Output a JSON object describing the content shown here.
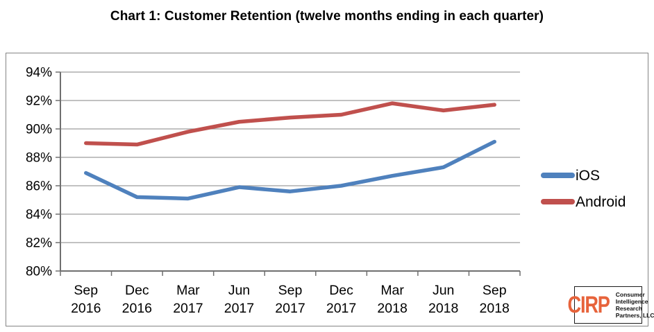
{
  "title": "Chart 1: Customer Retention (twelve months ending in each quarter)",
  "colors": {
    "ios_blue": "#4F81BD",
    "android_red": "#C0504D",
    "gridline": "#9C9C9C",
    "axis": "#6F6F6F",
    "chart_border": "#848484",
    "logo_orange": "#E7633B",
    "text": "#000000"
  },
  "chart_data": {
    "type": "line",
    "title": "Chart 1: Customer Retention (twelve months ending in each quarter)",
    "categories": [
      "Sep 2016",
      "Dec 2016",
      "Mar 2017",
      "Jun 2017",
      "Sep 2017",
      "Dec 2017",
      "Mar 2018",
      "Jun 2018",
      "Sep 2018"
    ],
    "series": [
      {
        "name": "iOS",
        "color": "#4F81BD",
        "values": [
          86.9,
          85.2,
          85.1,
          85.9,
          85.6,
          86.0,
          86.7,
          87.3,
          89.1
        ]
      },
      {
        "name": "Android",
        "color": "#C0504D",
        "values": [
          89.0,
          88.9,
          89.8,
          90.5,
          90.8,
          91.0,
          91.8,
          91.3,
          91.7
        ]
      }
    ],
    "xlabel": "",
    "ylabel": "",
    "ylim": [
      80,
      94
    ],
    "ytick_step": 2,
    "ytick_labels": [
      "80%",
      "82%",
      "84%",
      "86%",
      "88%",
      "90%",
      "92%",
      "94%"
    ],
    "grid": true,
    "legend_position": "right-outside"
  },
  "logo": {
    "abbr": "CIRP",
    "lines": [
      "Consumer",
      "Intelligence",
      "Research",
      "Partners, LLC"
    ]
  }
}
